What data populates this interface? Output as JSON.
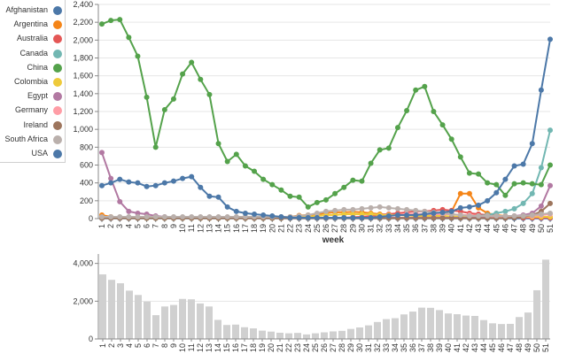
{
  "chart_data": [
    {
      "type": "line",
      "xlabel": "week",
      "ylabel": "",
      "ylim": [
        0,
        2400
      ],
      "yticks": [
        0,
        200,
        400,
        600,
        800,
        1000,
        1200,
        1400,
        1600,
        1800,
        2000,
        2200,
        2400
      ],
      "ytick_labels": [
        "0",
        "200",
        "400",
        "600",
        "800",
        "1,000",
        "1,200",
        "1,400",
        "1,600",
        "1,800",
        "2,000",
        "2,200",
        "2,400"
      ],
      "x": [
        1,
        2,
        3,
        4,
        5,
        6,
        7,
        8,
        9,
        10,
        11,
        12,
        13,
        14,
        15,
        16,
        17,
        18,
        19,
        20,
        21,
        22,
        23,
        24,
        25,
        26,
        27,
        28,
        29,
        30,
        31,
        32,
        33,
        34,
        35,
        36,
        37,
        38,
        39,
        40,
        41,
        42,
        43,
        44,
        45,
        46,
        47,
        48,
        49,
        50,
        51
      ],
      "grid": true,
      "legend": "left",
      "series": [
        {
          "name": "Afghanistan",
          "color": "#4c78a8",
          "values": [
            2,
            2,
            2,
            2,
            2,
            2,
            2,
            2,
            2,
            2,
            2,
            2,
            2,
            2,
            2,
            2,
            2,
            2,
            2,
            2,
            2,
            2,
            2,
            2,
            2,
            2,
            2,
            2,
            2,
            2,
            2,
            2,
            2,
            2,
            2,
            2,
            2,
            2,
            2,
            2,
            2,
            2,
            2,
            2,
            2,
            2,
            2,
            2,
            2,
            2,
            2
          ]
        },
        {
          "name": "Argentina",
          "color": "#f58518",
          "values": [
            40,
            20,
            15,
            10,
            8,
            5,
            5,
            5,
            5,
            5,
            5,
            5,
            5,
            5,
            5,
            5,
            5,
            5,
            5,
            5,
            10,
            20,
            35,
            40,
            50,
            60,
            70,
            70,
            75,
            70,
            60,
            50,
            45,
            40,
            40,
            40,
            45,
            50,
            70,
            80,
            280,
            280,
            120,
            60,
            40,
            30,
            20,
            10,
            10,
            10,
            10
          ]
        },
        {
          "name": "Australia",
          "color": "#e45756",
          "values": [
            5,
            5,
            5,
            5,
            5,
            5,
            5,
            5,
            5,
            5,
            5,
            5,
            5,
            5,
            5,
            5,
            5,
            5,
            5,
            5,
            5,
            5,
            5,
            5,
            5,
            5,
            10,
            10,
            15,
            20,
            30,
            40,
            50,
            60,
            70,
            80,
            80,
            90,
            100,
            90,
            80,
            60,
            50,
            40,
            30,
            20,
            15,
            10,
            10,
            10,
            10
          ]
        },
        {
          "name": "Canada",
          "color": "#72b7b2",
          "values": [
            5,
            5,
            5,
            5,
            5,
            5,
            5,
            5,
            5,
            5,
            5,
            5,
            5,
            5,
            5,
            5,
            5,
            5,
            5,
            5,
            5,
            5,
            5,
            5,
            5,
            5,
            5,
            5,
            5,
            5,
            5,
            5,
            5,
            10,
            10,
            10,
            10,
            15,
            15,
            20,
            20,
            25,
            30,
            40,
            60,
            80,
            110,
            170,
            280,
            570,
            990
          ]
        },
        {
          "name": "China",
          "color": "#54a24b",
          "values": [
            2180,
            2220,
            2230,
            2030,
            1820,
            1360,
            800,
            1220,
            1340,
            1620,
            1750,
            1560,
            1390,
            840,
            640,
            720,
            590,
            530,
            440,
            380,
            320,
            250,
            240,
            130,
            180,
            210,
            280,
            350,
            430,
            420,
            620,
            770,
            790,
            1020,
            1210,
            1440,
            1480,
            1200,
            1050,
            890,
            690,
            510,
            500,
            400,
            380,
            260,
            390,
            400,
            390,
            380,
            600
          ]
        },
        {
          "name": "Colombia",
          "color": "#eeca3b",
          "values": [
            10,
            10,
            10,
            8,
            8,
            5,
            5,
            5,
            5,
            5,
            5,
            5,
            5,
            5,
            5,
            5,
            5,
            5,
            5,
            5,
            5,
            10,
            15,
            20,
            30,
            40,
            40,
            50,
            50,
            50,
            50,
            40,
            40,
            40,
            35,
            30,
            30,
            30,
            30,
            25,
            20,
            20,
            20,
            20,
            20,
            20,
            20,
            20,
            20,
            20,
            20
          ]
        },
        {
          "name": "Egypt",
          "color": "#b279a2",
          "values": [
            740,
            450,
            190,
            80,
            60,
            50,
            30,
            20,
            15,
            15,
            10,
            10,
            10,
            10,
            10,
            10,
            10,
            10,
            10,
            10,
            10,
            10,
            10,
            10,
            10,
            10,
            10,
            10,
            10,
            10,
            10,
            10,
            10,
            10,
            10,
            10,
            10,
            10,
            10,
            10,
            10,
            10,
            10,
            10,
            10,
            20,
            30,
            40,
            60,
            140,
            370
          ]
        },
        {
          "name": "Germany",
          "color": "#ff9da6",
          "values": [
            10,
            10,
            10,
            10,
            10,
            10,
            10,
            10,
            10,
            10,
            10,
            10,
            10,
            10,
            10,
            10,
            10,
            10,
            10,
            10,
            10,
            10,
            10,
            10,
            10,
            10,
            10,
            10,
            10,
            10,
            10,
            20,
            30,
            40,
            50,
            50,
            50,
            50,
            50,
            50,
            40,
            40,
            30,
            30,
            20,
            20,
            20,
            20,
            30,
            40,
            50
          ]
        },
        {
          "name": "Ireland",
          "color": "#9d755d",
          "values": [
            5,
            5,
            5,
            5,
            5,
            5,
            5,
            5,
            5,
            5,
            5,
            5,
            5,
            5,
            5,
            5,
            5,
            5,
            5,
            5,
            5,
            5,
            5,
            5,
            5,
            5,
            5,
            5,
            5,
            5,
            5,
            5,
            5,
            5,
            5,
            5,
            5,
            5,
            5,
            5,
            5,
            5,
            5,
            5,
            5,
            5,
            10,
            20,
            40,
            80,
            170
          ]
        },
        {
          "name": "South Africa",
          "color": "#bab0ac",
          "values": [
            20,
            20,
            20,
            20,
            20,
            20,
            20,
            20,
            20,
            20,
            20,
            20,
            20,
            20,
            20,
            20,
            20,
            20,
            20,
            20,
            20,
            20,
            30,
            40,
            60,
            80,
            90,
            100,
            100,
            110,
            120,
            130,
            120,
            110,
            100,
            90,
            80,
            70,
            60,
            50,
            40,
            30,
            30,
            30,
            30,
            30,
            30,
            30,
            40,
            50,
            60
          ]
        },
        {
          "name": "USA",
          "color": "#4c78a8",
          "values": [
            370,
            400,
            440,
            410,
            400,
            360,
            370,
            400,
            420,
            450,
            470,
            350,
            250,
            240,
            130,
            80,
            60,
            50,
            40,
            30,
            20,
            10,
            10,
            10,
            10,
            10,
            10,
            10,
            10,
            10,
            10,
            20,
            30,
            40,
            40,
            40,
            50,
            60,
            70,
            80,
            120,
            130,
            150,
            200,
            290,
            440,
            590,
            610,
            840,
            1440,
            2010
          ]
        }
      ]
    },
    {
      "type": "bar",
      "xlabel": "",
      "ylabel": "",
      "ylim": [
        0,
        4500
      ],
      "yticks": [
        0,
        2000,
        4000
      ],
      "ytick_labels": [
        "0",
        "2,000",
        "4,000"
      ],
      "categories": [
        "1",
        "2",
        "3",
        "4",
        "5",
        "6",
        "7",
        "8",
        "9",
        "10",
        "11",
        "12",
        "13",
        "14",
        "15",
        "16",
        "17",
        "18",
        "19",
        "20",
        "21",
        "22",
        "23",
        "24",
        "25",
        "26",
        "27",
        "28",
        "29",
        "30",
        "31",
        "32",
        "33",
        "34",
        "35",
        "36",
        "37",
        "38",
        "39",
        "40",
        "41",
        "42",
        "43",
        "44",
        "45",
        "46",
        "47",
        "48",
        "49",
        "50",
        "51"
      ],
      "values": [
        3420,
        3130,
        2950,
        2560,
        2330,
        1980,
        1260,
        1720,
        1800,
        2120,
        2100,
        1880,
        1720,
        1010,
        740,
        760,
        620,
        560,
        440,
        390,
        330,
        300,
        320,
        240,
        300,
        350,
        400,
        430,
        530,
        610,
        720,
        900,
        1050,
        1100,
        1300,
        1450,
        1660,
        1650,
        1530,
        1350,
        1310,
        1240,
        1220,
        1000,
        830,
        790,
        800,
        1160,
        1400,
        2580,
        4200
      ],
      "color": "#d0d0d0",
      "grid": true
    }
  ]
}
